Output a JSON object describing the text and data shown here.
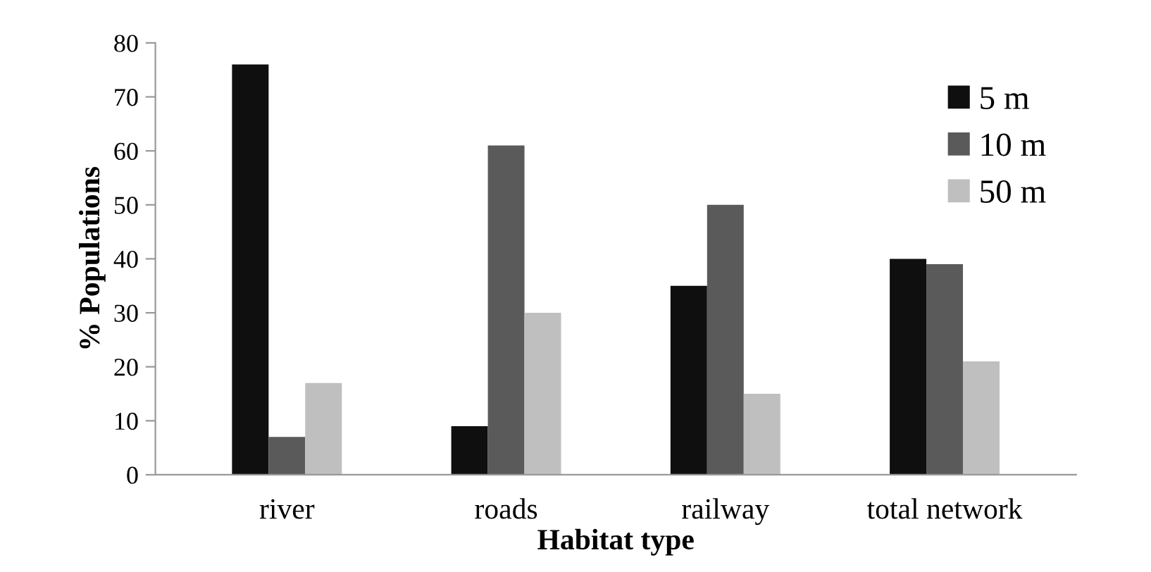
{
  "chart_data": {
    "type": "bar",
    "xlabel": "Habitat type",
    "ylabel": "% Populations",
    "categories": [
      "river",
      "roads",
      "railway",
      "total network"
    ],
    "series": [
      {
        "name": "5 m",
        "color": "#0f0f0f",
        "values": [
          76,
          9,
          35,
          40
        ]
      },
      {
        "name": "10 m",
        "color": "#5a5a5a",
        "values": [
          7,
          61,
          50,
          39
        ]
      },
      {
        "name": "50 m",
        "color": "#bfbfbf",
        "values": [
          17,
          30,
          15,
          21
        ]
      }
    ],
    "ylim": [
      0,
      80
    ],
    "yticks": [
      0,
      10,
      20,
      30,
      40,
      50,
      60,
      70,
      80
    ],
    "grid": false,
    "legend": "top right"
  }
}
